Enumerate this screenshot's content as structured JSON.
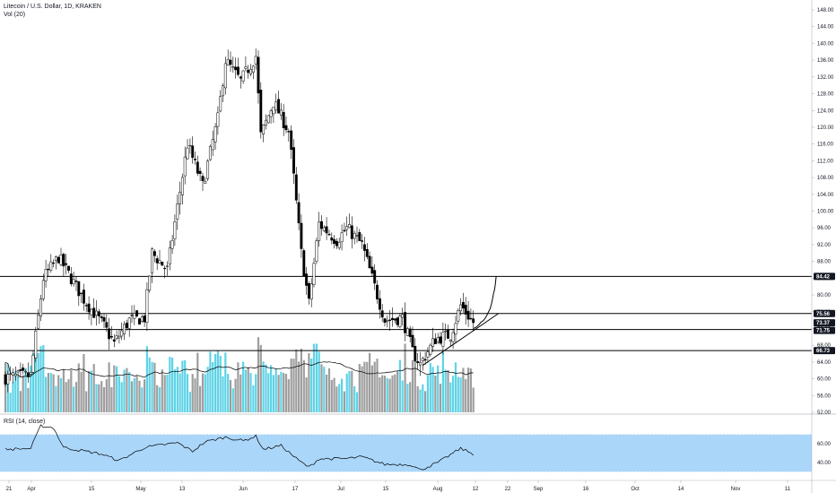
{
  "header": {
    "title": "Litecoin / U.S. Dollar, 1D, KRAKEN",
    "volume_label": "Vol (20)",
    "rsi_label": "RSI (14, close)"
  },
  "colors": {
    "up_candle": "#ffffff",
    "down_candle": "#000000",
    "volume_up": "#5fd3e6",
    "volume_down": "#9e9e9e",
    "rsi_band": "#aad6fa",
    "price_badge": "#131722",
    "lines": "#000000"
  },
  "chart_data": [
    {
      "type": "candlestick",
      "title": "Litecoin / U.S. Dollar, 1D, KRAKEN",
      "y_axis_side": "right",
      "ylim": [
        52,
        150
      ],
      "yticks": [
        52.0,
        56.0,
        60.0,
        64.0,
        68.0,
        72.0,
        76.0,
        80.0,
        84.0,
        88.0,
        92.0,
        96.0,
        100.0,
        104.0,
        108.0,
        112.0,
        116.0,
        120.0,
        124.0,
        128.0,
        132.0,
        136.0,
        140.0,
        144.0,
        148.0
      ],
      "x_tick_labels": [
        "21",
        "Apr",
        "15",
        "May",
        "13",
        "Jun",
        "17",
        "Jul",
        "15",
        "Aug",
        "12",
        "22",
        "Sep",
        "16",
        "Oct",
        "14",
        "Nov",
        "11"
      ],
      "approx_close_path": [
        {
          "date": "Mar 18",
          "close": 60.3
        },
        {
          "date": "Mar 28",
          "close": 60.8
        },
        {
          "date": "Apr 2",
          "close": 84.0
        },
        {
          "date": "Apr 8",
          "close": 89.0
        },
        {
          "date": "Apr 18",
          "close": 79.0
        },
        {
          "date": "Apr 26",
          "close": 72.5
        },
        {
          "date": "Apr 30",
          "close": 68.5
        },
        {
          "date": "May 6",
          "close": 74.0
        },
        {
          "date": "May 12",
          "close": 74.5
        },
        {
          "date": "May 15",
          "close": 90.0
        },
        {
          "date": "May 21",
          "close": 86.0
        },
        {
          "date": "May 29",
          "close": 116.0
        },
        {
          "date": "Jun 4",
          "close": 106.0
        },
        {
          "date": "Jun 10",
          "close": 122.0
        },
        {
          "date": "Jun 13",
          "close": 136.0
        },
        {
          "date": "Jun 19",
          "close": 131.0
        },
        {
          "date": "Jun 25",
          "close": 137.0
        },
        {
          "date": "Jun 27",
          "close": 118.0
        },
        {
          "date": "Jul 2",
          "close": 126.0
        },
        {
          "date": "Jul 8",
          "close": 119.0
        },
        {
          "date": "Jul 10",
          "close": 108.0
        },
        {
          "date": "Jul 13",
          "close": 90.0
        },
        {
          "date": "Jul 16",
          "close": 78.0
        },
        {
          "date": "Jul 20",
          "close": 97.0
        },
        {
          "date": "Jul 27",
          "close": 93.0
        },
        {
          "date": "Jul 31",
          "close": 96.0
        },
        {
          "date": "Aug 6",
          "close": 92.0
        },
        {
          "date": "Aug 10",
          "close": 84.0
        },
        {
          "date": "Aug 15",
          "close": 74.0
        },
        {
          "date": "Aug 22",
          "close": 74.5
        },
        {
          "date": "Aug 26",
          "close": 66.5
        },
        {
          "date": "Aug 29",
          "close": 63.5
        },
        {
          "date": "Sep 4",
          "close": 69.5
        },
        {
          "date": "Sep 10",
          "close": 70.5
        },
        {
          "date": "Sep 14",
          "close": 77.5
        },
        {
          "date": "Sep 19",
          "close": 73.37
        }
      ],
      "horizontal_levels": [
        84.42,
        75.56,
        71.75,
        66.73
      ],
      "price_labels": [
        {
          "text": "84.42",
          "value": 84.42
        },
        {
          "text": "75.56",
          "value": 75.56
        },
        {
          "text": "73.37",
          "value": 73.37
        },
        {
          "text": "71.75",
          "value": 71.75
        },
        {
          "text": "66.73",
          "value": 66.73
        }
      ],
      "trendline": [
        {
          "date": "Aug 30",
          "value": 63.2
        },
        {
          "date": "Sep 29",
          "value": 75.6
        }
      ],
      "projection": [
        {
          "date": "Sep 19",
          "value": 72.0
        },
        {
          "date": "Sep 22",
          "value": 73.5
        },
        {
          "date": "Sep 25",
          "value": 76.0
        },
        {
          "date": "Sep 27",
          "value": 80.5
        },
        {
          "date": "Sep 28",
          "value": 84.42
        }
      ]
    },
    {
      "type": "bar",
      "name": "Vol (20)",
      "has_moving_average": true
    },
    {
      "type": "line",
      "title": "RSI (14, close)",
      "ylim": [
        20,
        80
      ],
      "yticks": [
        40.0,
        60.0
      ],
      "band": [
        30,
        70
      ],
      "rsi_path": [
        {
          "date": "Mar 18",
          "value": 54
        },
        {
          "date": "Mar 28",
          "value": 55
        },
        {
          "date": "Apr 1",
          "value": 79
        },
        {
          "date": "Apr 6",
          "value": 77
        },
        {
          "date": "Apr 10",
          "value": 56
        },
        {
          "date": "Apr 25",
          "value": 49
        },
        {
          "date": "May 2",
          "value": 42
        },
        {
          "date": "May 12",
          "value": 56
        },
        {
          "date": "May 25",
          "value": 61
        },
        {
          "date": "May 31",
          "value": 52
        },
        {
          "date": "Jun 5",
          "value": 62
        },
        {
          "date": "Jun 13",
          "value": 67
        },
        {
          "date": "Jun 20",
          "value": 63
        },
        {
          "date": "Jun 25",
          "value": 68
        },
        {
          "date": "Jun 28",
          "value": 54
        },
        {
          "date": "Jul 5",
          "value": 58
        },
        {
          "date": "Jul 12",
          "value": 42
        },
        {
          "date": "Jul 16",
          "value": 35
        },
        {
          "date": "Jul 20",
          "value": 44
        },
        {
          "date": "Jul 30",
          "value": 44
        },
        {
          "date": "Aug 6",
          "value": 46
        },
        {
          "date": "Aug 15",
          "value": 38
        },
        {
          "date": "Aug 25",
          "value": 38
        },
        {
          "date": "Aug 29",
          "value": 32
        },
        {
          "date": "Sep 5",
          "value": 40
        },
        {
          "date": "Sep 14",
          "value": 55
        },
        {
          "date": "Sep 19",
          "value": 49
        }
      ]
    }
  ]
}
